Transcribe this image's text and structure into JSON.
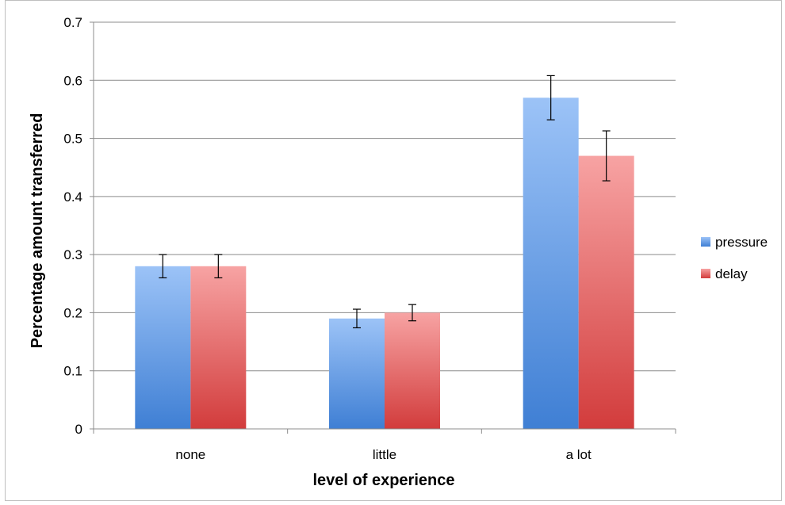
{
  "chart_data": {
    "type": "bar",
    "title": "",
    "xlabel": "level of experience",
    "ylabel": "Percentage amount transferred",
    "categories": [
      "none",
      "little",
      "a lot"
    ],
    "ylim": [
      0,
      0.7
    ],
    "yticks": [
      0,
      0.1,
      0.2,
      0.3,
      0.4,
      0.5,
      0.6,
      0.7
    ],
    "ytick_labels": [
      "0",
      "0.1",
      "0.2",
      "0.3",
      "0.4",
      "0.5",
      "0.6",
      "0.7"
    ],
    "grid": true,
    "legend_position": "right",
    "series": [
      {
        "name": "pressure",
        "color_top": "#9cc3f7",
        "color_bottom": "#3f7fd4",
        "values": [
          0.28,
          0.19,
          0.57
        ],
        "error": [
          0.02,
          0.016,
          0.038
        ]
      },
      {
        "name": "delay",
        "color_top": "#f7a3a3",
        "color_bottom": "#d23c3c",
        "values": [
          0.28,
          0.2,
          0.47
        ],
        "error": [
          0.02,
          0.014,
          0.043
        ]
      }
    ]
  }
}
